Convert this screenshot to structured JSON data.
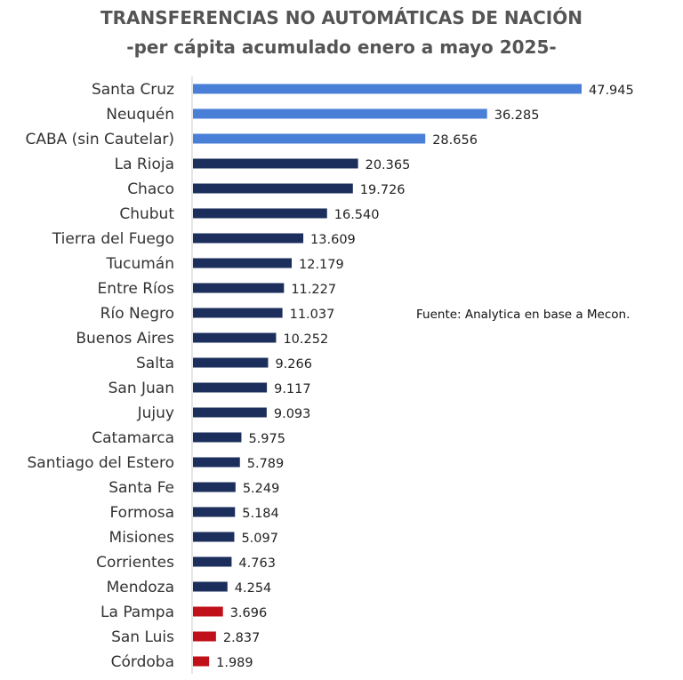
{
  "chart_data": {
    "type": "bar",
    "orientation": "horizontal",
    "title": "TRANSFERENCIAS NO AUTOMÁTICAS DE NACIÓN",
    "subtitle": "-per cápita acumulado enero a mayo 2025-",
    "source": "Fuente: Analytica en base a Mecon.",
    "categories": [
      "Santa Cruz",
      "Neuquén",
      "CABA (sin Cautelar)",
      "La Rioja",
      "Chaco",
      "Chubut",
      "Tierra del Fuego",
      "Tucumán",
      "Entre Ríos",
      "Río Negro",
      "Buenos Aires",
      "Salta",
      "San Juan",
      "Jujuy",
      "Catamarca",
      "Santiago del Estero",
      "Santa Fe",
      "Formosa",
      "Misiones",
      "Corrientes",
      "Mendoza",
      "La Pampa",
      "San Luis",
      "Córdoba"
    ],
    "values": [
      47945,
      36285,
      28656,
      20365,
      19726,
      16540,
      13609,
      12179,
      11227,
      11037,
      10252,
      9266,
      9117,
      9093,
      5975,
      5789,
      5249,
      5184,
      5097,
      4763,
      4254,
      3696,
      2837,
      1989
    ],
    "value_labels": [
      "47.945",
      "36.285",
      "28.656",
      "20.365",
      "19.726",
      "16.540",
      "13.609",
      "12.179",
      "11.227",
      "11.037",
      "10.252",
      "9.266",
      "9.117",
      "9.093",
      "5.975",
      "5.789",
      "5.249",
      "5.184",
      "5.097",
      "4.763",
      "4.254",
      "3.696",
      "2.837",
      "1.989"
    ],
    "bar_colors": [
      "#4a7fd8",
      "#4a7fd8",
      "#4a7fd8",
      "#1c2f5c",
      "#1c2f5c",
      "#1c2f5c",
      "#1c2f5c",
      "#1c2f5c",
      "#1c2f5c",
      "#1c2f5c",
      "#1c2f5c",
      "#1c2f5c",
      "#1c2f5c",
      "#1c2f5c",
      "#1c2f5c",
      "#1c2f5c",
      "#1c2f5c",
      "#1c2f5c",
      "#1c2f5c",
      "#1c2f5c",
      "#1c2f5c",
      "#c0101a",
      "#c0101a",
      "#c0101a"
    ],
    "axis_line_color": "#cccccc",
    "xlim": [
      0,
      47945
    ],
    "grid": false,
    "legend": "none"
  }
}
